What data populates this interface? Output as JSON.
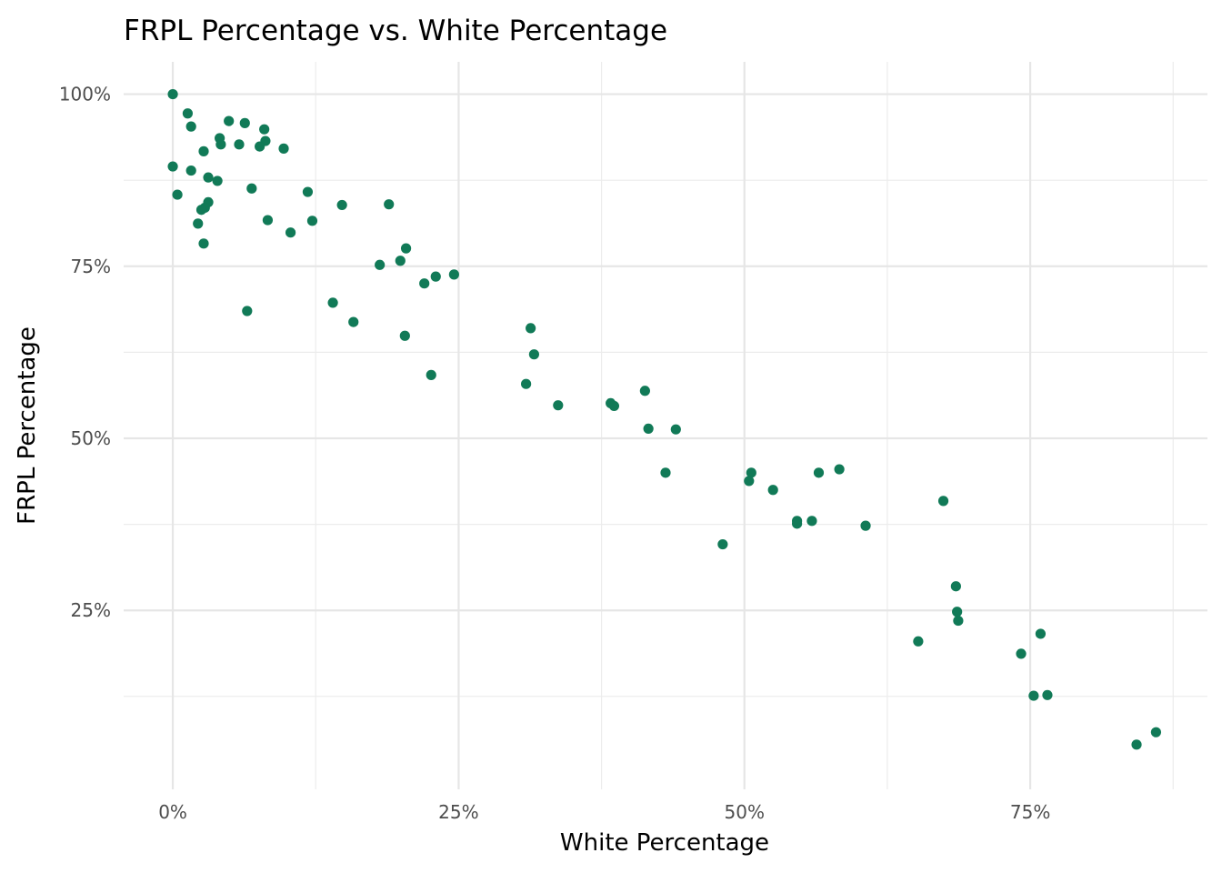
{
  "chart_data": {
    "type": "scatter",
    "title": "FRPL Percentage vs. White Percentage",
    "xlabel": "White Percentage",
    "ylabel": "FRPL Percentage",
    "xlim": [
      -0.043,
      0.905
    ],
    "ylim": [
      -0.01,
      1.047
    ],
    "x_ticks": [
      0,
      0.25,
      0.5,
      0.75
    ],
    "x_tick_labels": [
      "0%",
      "25%",
      "50%",
      "75%"
    ],
    "x_minor_ticks": [
      0.125,
      0.375,
      0.625,
      0.875
    ],
    "y_ticks": [
      0.25,
      0.5,
      0.75,
      1.0
    ],
    "y_tick_labels": [
      "25%",
      "50%",
      "75%",
      "100%"
    ],
    "y_minor_ticks": [
      0.125,
      0.375,
      0.625,
      0.875
    ],
    "grid": true,
    "legend": "none",
    "point_color": "#117a57",
    "points": [
      {
        "x": 0.0,
        "y": 1.0
      },
      {
        "x": 0.013,
        "y": 0.972
      },
      {
        "x": 0.016,
        "y": 0.953
      },
      {
        "x": 0.049,
        "y": 0.961
      },
      {
        "x": 0.063,
        "y": 0.958
      },
      {
        "x": 0.08,
        "y": 0.949
      },
      {
        "x": 0.041,
        "y": 0.936
      },
      {
        "x": 0.042,
        "y": 0.927
      },
      {
        "x": 0.058,
        "y": 0.927
      },
      {
        "x": 0.081,
        "y": 0.932
      },
      {
        "x": 0.076,
        "y": 0.924
      },
      {
        "x": 0.097,
        "y": 0.921
      },
      {
        "x": 0.027,
        "y": 0.917
      },
      {
        "x": 0.0,
        "y": 0.895
      },
      {
        "x": 0.016,
        "y": 0.889
      },
      {
        "x": 0.031,
        "y": 0.879
      },
      {
        "x": 0.039,
        "y": 0.874
      },
      {
        "x": 0.069,
        "y": 0.863
      },
      {
        "x": 0.004,
        "y": 0.854
      },
      {
        "x": 0.118,
        "y": 0.858
      },
      {
        "x": 0.031,
        "y": 0.843
      },
      {
        "x": 0.028,
        "y": 0.835
      },
      {
        "x": 0.025,
        "y": 0.832
      },
      {
        "x": 0.148,
        "y": 0.839
      },
      {
        "x": 0.189,
        "y": 0.84
      },
      {
        "x": 0.083,
        "y": 0.817
      },
      {
        "x": 0.122,
        "y": 0.816
      },
      {
        "x": 0.022,
        "y": 0.812
      },
      {
        "x": 0.103,
        "y": 0.799
      },
      {
        "x": 0.027,
        "y": 0.783
      },
      {
        "x": 0.204,
        "y": 0.776
      },
      {
        "x": 0.199,
        "y": 0.758
      },
      {
        "x": 0.181,
        "y": 0.752
      },
      {
        "x": 0.246,
        "y": 0.738
      },
      {
        "x": 0.23,
        "y": 0.735
      },
      {
        "x": 0.22,
        "y": 0.725
      },
      {
        "x": 0.14,
        "y": 0.697
      },
      {
        "x": 0.065,
        "y": 0.685
      },
      {
        "x": 0.158,
        "y": 0.669
      },
      {
        "x": 0.203,
        "y": 0.649
      },
      {
        "x": 0.313,
        "y": 0.66
      },
      {
        "x": 0.316,
        "y": 0.622
      },
      {
        "x": 0.226,
        "y": 0.592
      },
      {
        "x": 0.309,
        "y": 0.579
      },
      {
        "x": 0.413,
        "y": 0.569
      },
      {
        "x": 0.337,
        "y": 0.548
      },
      {
        "x": 0.383,
        "y": 0.551
      },
      {
        "x": 0.386,
        "y": 0.547
      },
      {
        "x": 0.416,
        "y": 0.514
      },
      {
        "x": 0.44,
        "y": 0.513
      },
      {
        "x": 0.431,
        "y": 0.45
      },
      {
        "x": 0.506,
        "y": 0.45
      },
      {
        "x": 0.504,
        "y": 0.438
      },
      {
        "x": 0.525,
        "y": 0.425
      },
      {
        "x": 0.565,
        "y": 0.45
      },
      {
        "x": 0.583,
        "y": 0.455
      },
      {
        "x": 0.546,
        "y": 0.38
      },
      {
        "x": 0.546,
        "y": 0.376
      },
      {
        "x": 0.559,
        "y": 0.38
      },
      {
        "x": 0.606,
        "y": 0.373
      },
      {
        "x": 0.481,
        "y": 0.346
      },
      {
        "x": 0.674,
        "y": 0.409
      },
      {
        "x": 0.685,
        "y": 0.285
      },
      {
        "x": 0.686,
        "y": 0.248
      },
      {
        "x": 0.687,
        "y": 0.235
      },
      {
        "x": 0.652,
        "y": 0.205
      },
      {
        "x": 0.759,
        "y": 0.216
      },
      {
        "x": 0.742,
        "y": 0.187
      },
      {
        "x": 0.753,
        "y": 0.126
      },
      {
        "x": 0.765,
        "y": 0.127
      },
      {
        "x": 0.86,
        "y": 0.073
      },
      {
        "x": 0.843,
        "y": 0.055
      }
    ]
  }
}
